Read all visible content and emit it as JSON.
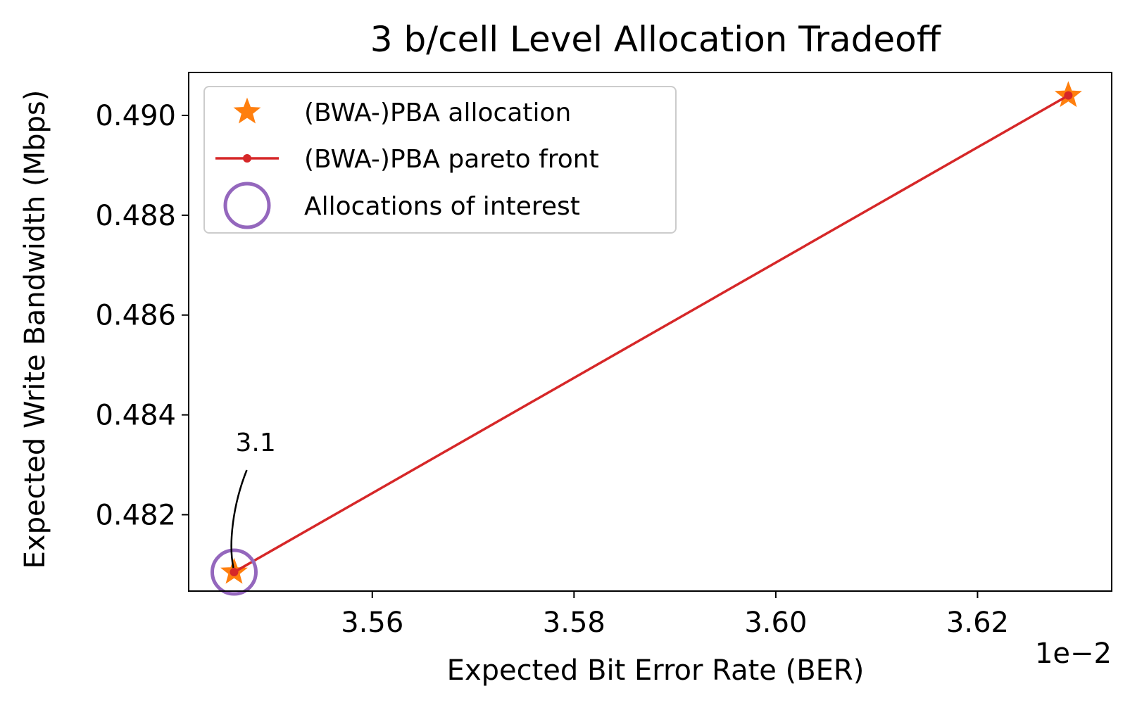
{
  "chart_data": {
    "type": "line",
    "title": "3 b/cell Level Allocation Tradeoff",
    "xlabel": "Expected Bit Error Rate (BER)",
    "ylabel": "Expected Write Bandwidth (Mbps)",
    "x_offset_label": "1e−2",
    "x_scale": 0.01,
    "xlim": [
      3.5418,
      3.6333
    ],
    "ylim": [
      0.48047,
      0.49086
    ],
    "xticks": [
      3.56,
      3.58,
      3.6,
      3.62
    ],
    "xtick_labels": [
      "3.56",
      "3.58",
      "3.60",
      "3.62"
    ],
    "yticks": [
      0.482,
      0.484,
      0.486,
      0.488,
      0.49
    ],
    "ytick_labels": [
      "0.482",
      "0.484",
      "0.486",
      "0.488",
      "0.490"
    ],
    "grid": false,
    "legend_position": "upper-left",
    "series": [
      {
        "name": "(BWA-)PBA allocation",
        "kind": "scatter",
        "marker": "star",
        "color": "#ff7f0e",
        "x": [
          3.5463,
          3.629
        ],
        "y": [
          0.48085,
          0.4904
        ]
      },
      {
        "name": "(BWA-)PBA pareto front",
        "kind": "line",
        "marker": "dot",
        "color": "#d62728",
        "x": [
          3.5463,
          3.629
        ],
        "y": [
          0.48085,
          0.4904
        ]
      },
      {
        "name": "Allocations of interest",
        "kind": "scatter",
        "marker": "open-circle",
        "color": "#9467bd",
        "x": [
          3.5463
        ],
        "y": [
          0.48085
        ]
      }
    ],
    "annotations": [
      {
        "text": "3.1",
        "x": 3.5463,
        "y": 0.48085
      }
    ]
  }
}
